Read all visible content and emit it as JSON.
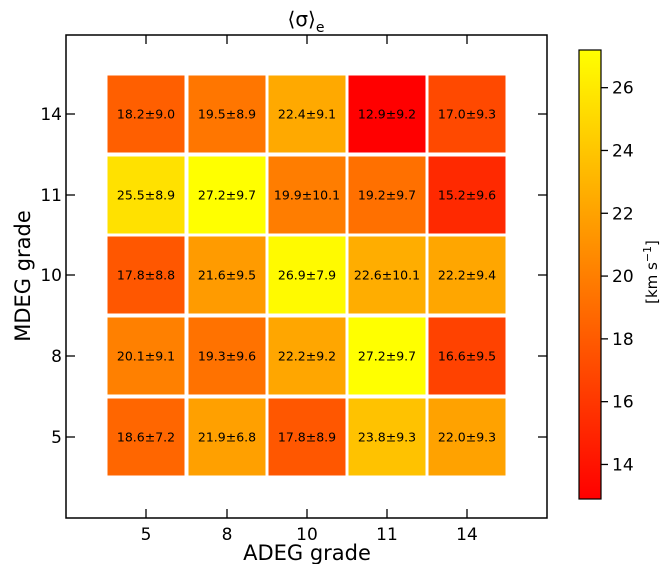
{
  "chart_data": {
    "type": "heatmap",
    "title": "⟨σ⟩",
    "title_subscript": "e",
    "xlabel": "ADEG grade",
    "ylabel": "MDEG grade",
    "x_categories": [
      "5",
      "8",
      "10",
      "11",
      "14"
    ],
    "y_categories": [
      "5",
      "8",
      "10",
      "11",
      "14"
    ],
    "values": [
      [
        18.6,
        21.9,
        17.8,
        23.8,
        22.0
      ],
      [
        20.1,
        19.3,
        22.2,
        27.2,
        16.6
      ],
      [
        17.8,
        21.6,
        26.9,
        22.6,
        22.2
      ],
      [
        25.5,
        27.2,
        19.9,
        19.2,
        15.2
      ],
      [
        18.2,
        19.5,
        22.4,
        12.9,
        17.0
      ]
    ],
    "errors": [
      [
        7.2,
        6.8,
        8.9,
        9.3,
        9.3
      ],
      [
        9.1,
        9.6,
        9.2,
        9.7,
        9.5
      ],
      [
        8.8,
        9.5,
        7.9,
        10.1,
        9.4
      ],
      [
        8.9,
        9.7,
        10.1,
        9.7,
        9.6
      ],
      [
        9.0,
        8.9,
        9.1,
        9.2,
        9.3
      ]
    ],
    "colorbar": {
      "label_text": "[km s",
      "label_sup": "−1",
      "label_close": "]",
      "ticks": [
        "14",
        "16",
        "18",
        "20",
        "22",
        "24",
        "26"
      ],
      "range": [
        12.9,
        27.2
      ],
      "colormap": "autumn",
      "colors": [
        "#ff0000",
        "#ffff00"
      ]
    },
    "grid": false
  }
}
